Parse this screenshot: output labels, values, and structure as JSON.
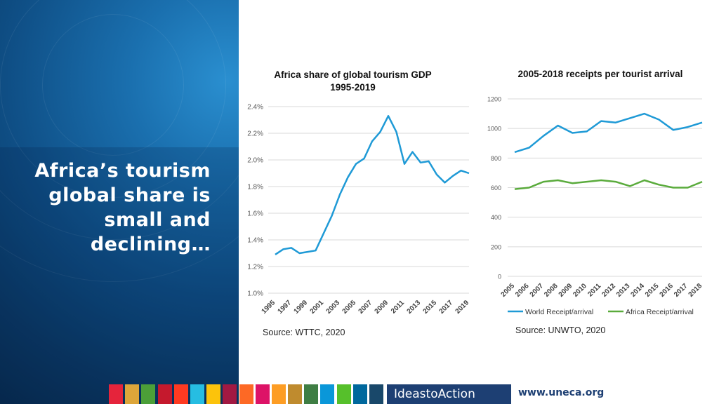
{
  "headline": [
    "Africa’s tourism",
    "global share is",
    "small and",
    "declining…"
  ],
  "chart_data": [
    {
      "type": "line",
      "title": "Africa share of global tourism GDP",
      "subtitle": "1995-2019",
      "x": [
        1995,
        1996,
        1997,
        1998,
        1999,
        2000,
        2001,
        2002,
        2003,
        2004,
        2005,
        2006,
        2007,
        2008,
        2009,
        2010,
        2011,
        2012,
        2013,
        2014,
        2015,
        2016,
        2017,
        2018,
        2019
      ],
      "xtick_labels": [
        "1995",
        "1997",
        "1999",
        "2001",
        "2003",
        "2005",
        "2007",
        "2009",
        "2011",
        "2013",
        "2015",
        "2017",
        "2019"
      ],
      "series": [
        {
          "name": "Africa share",
          "color": "#1f9ad6",
          "values": [
            1.29,
            1.33,
            1.34,
            1.3,
            1.31,
            1.32,
            1.45,
            1.58,
            1.74,
            1.87,
            1.97,
            2.01,
            2.14,
            2.21,
            2.33,
            2.21,
            1.97,
            2.06,
            1.98,
            1.99,
            1.89,
            1.83,
            1.88,
            1.92,
            1.9
          ]
        }
      ],
      "ylim": [
        1.0,
        2.4
      ],
      "yticks": [
        1.0,
        1.2,
        1.4,
        1.6,
        1.8,
        2.0,
        2.2,
        2.4
      ],
      "ytick_labels": [
        "1.0%",
        "1.2%",
        "1.4%",
        "1.6%",
        "1.8%",
        "2.0%",
        "2.2%",
        "2.4%"
      ],
      "grid": true,
      "source": "Source: WTTC, 2020"
    },
    {
      "type": "line",
      "title": "2005-2018 receipts per tourist arrival",
      "x": [
        2005,
        2006,
        2007,
        2008,
        2009,
        2010,
        2011,
        2012,
        2013,
        2014,
        2015,
        2016,
        2017,
        2018
      ],
      "xtick_labels": [
        "2005",
        "2006",
        "2007",
        "2008",
        "2009",
        "2010",
        "2011",
        "2012",
        "2013",
        "2014",
        "2015",
        "2016",
        "2017",
        "2018"
      ],
      "series": [
        {
          "name": "World Receipt/arrival",
          "color": "#1f9ad6",
          "values": [
            840,
            870,
            950,
            1020,
            970,
            980,
            1050,
            1040,
            1070,
            1100,
            1060,
            990,
            1010,
            1040
          ]
        },
        {
          "name": "Africa Receipt/arrival",
          "color": "#5aab3c",
          "values": [
            590,
            600,
            640,
            650,
            630,
            640,
            650,
            640,
            610,
            650,
            620,
            600,
            600,
            640
          ]
        }
      ],
      "ylim": [
        0,
        1200
      ],
      "yticks": [
        0,
        200,
        400,
        600,
        800,
        1000,
        1200
      ],
      "ytick_labels": [
        "0",
        "200",
        "400",
        "600",
        "800",
        "1000",
        "1200"
      ],
      "grid": true,
      "legend": "bottom",
      "source": "Source: UNWTO, 2020"
    }
  ],
  "footer": {
    "sdg_colors": [
      "#e5243b",
      "#dda63a",
      "#4c9f38",
      "#c5192d",
      "#ff3a21",
      "#26bde2",
      "#fcc30b",
      "#a21942",
      "#fd6925",
      "#dd1367",
      "#fd9d24",
      "#bf8b2e",
      "#3f7e44",
      "#0a97d9",
      "#56c02b",
      "#00689d",
      "#19486a"
    ],
    "brand": "IdeastoAction",
    "site": "www.uneca.org"
  }
}
